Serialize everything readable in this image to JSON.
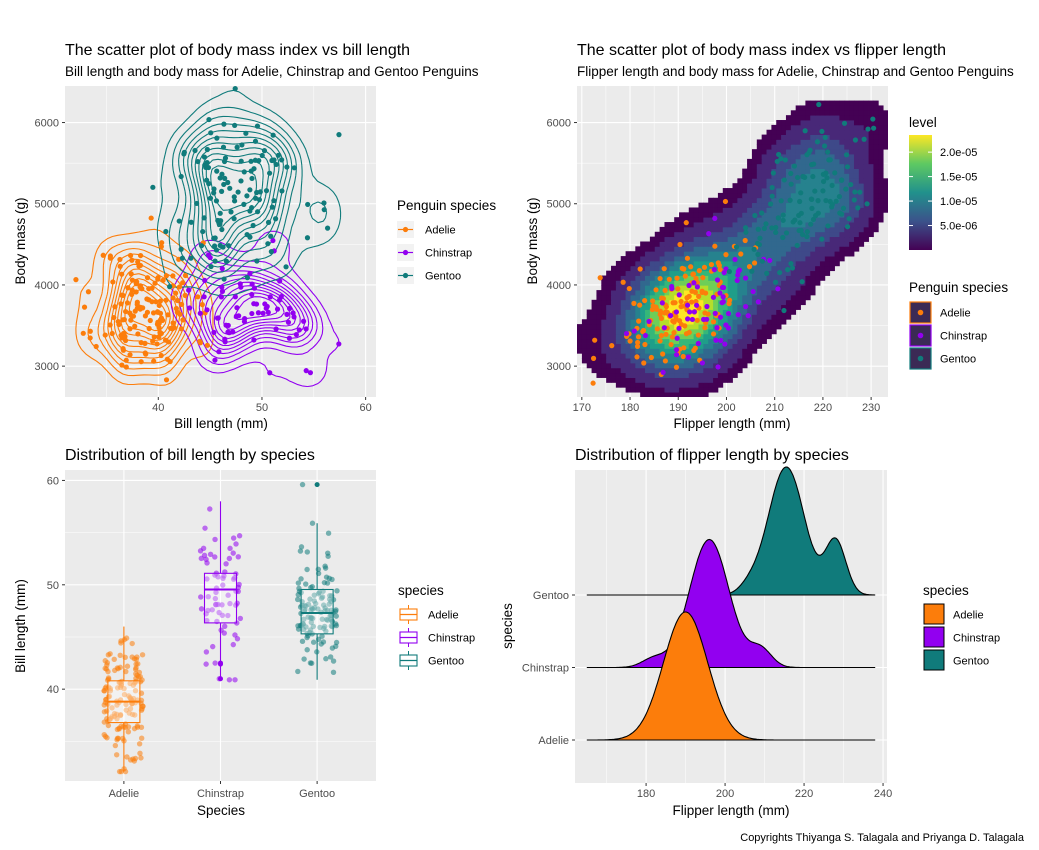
{
  "colors": {
    "adelie": "#fc7d0b",
    "chinstrap": "#9200f0",
    "gentoo": "#107b7b",
    "panel_bg": "#ebebeb",
    "grid": "#ffffff",
    "ridge_line": "#000000"
  },
  "copyright": "Copyrights Thiyanga S. Talagala and Priyanga D. Talagala",
  "chart_data": [
    {
      "id": "p1",
      "type": "scatter",
      "overlay": "2d-density-contours",
      "title": "The scatter plot of body mass index vs bill length",
      "subtitle": "Bill length and body mass for Adelie, Chinstrap and Gentoo Penguins",
      "xlabel": "Bill length (mm)",
      "ylabel": "Body mass (g)",
      "xlim": [
        31,
        61
      ],
      "ylim": [
        2620,
        6450
      ],
      "xticks": [
        40,
        50,
        60
      ],
      "yticks": [
        3000,
        4000,
        5000,
        6000
      ],
      "grid": true,
      "legend_placement": "right",
      "legend": {
        "title": "Penguin species",
        "entries": [
          "Adelie",
          "Chinstrap",
          "Gentoo"
        ]
      },
      "series": [
        {
          "name": "Adelie",
          "color": "#fc7d0b",
          "center": [
            38.8,
            3700
          ],
          "spread": [
            2.66,
            458
          ]
        },
        {
          "name": "Chinstrap",
          "color": "#9200f0",
          "center": [
            48.8,
            3733
          ],
          "spread": [
            3.34,
            384
          ]
        },
        {
          "name": "Gentoo",
          "color": "#107b7b",
          "center": [
            47.5,
            5076
          ],
          "spread": [
            3.08,
            504
          ]
        }
      ]
    },
    {
      "id": "p2",
      "type": "scatter",
      "overlay": "filled-2d-density",
      "title": "The scatter plot of body mass index vs flipper length",
      "subtitle": "Flipper length and body mass for Adelie, Chinstrap and Gentoo Penguins",
      "xlabel": "Flipper length (mm)",
      "ylabel": "Body mass (g)",
      "xlim": [
        169,
        233.5
      ],
      "ylim": [
        2620,
        6450
      ],
      "xticks": [
        170,
        180,
        190,
        200,
        210,
        220,
        230
      ],
      "yticks": [
        3000,
        4000,
        5000,
        6000
      ],
      "grid": true,
      "legend_placement": "right",
      "colorbar": {
        "title": "level",
        "ticks": [
          "2.0e-05",
          "1.5e-05",
          "1.0e-05",
          "5.0e-06"
        ],
        "tick_values": [
          2e-05,
          1.5e-05,
          1e-05,
          5e-06
        ],
        "range": [
          0,
          2.35e-05
        ]
      },
      "legend": {
        "title": "Penguin species",
        "entries": [
          "Adelie",
          "Chinstrap",
          "Gentoo"
        ]
      },
      "series": [
        {
          "name": "Adelie",
          "color": "#fc7d0b",
          "center": [
            190,
            3700
          ],
          "spread": [
            6.5,
            458
          ]
        },
        {
          "name": "Chinstrap",
          "color": "#9200f0",
          "center": [
            196,
            3733
          ],
          "spread": [
            7.1,
            384
          ]
        },
        {
          "name": "Gentoo",
          "color": "#107b7b",
          "center": [
            217,
            5076
          ],
          "spread": [
            6.5,
            504
          ]
        }
      ]
    },
    {
      "id": "p3",
      "type": "box",
      "overlay": "jittered-points",
      "title": "Distribution of bill length by species",
      "xlabel": "Species",
      "ylabel": "Bill length (mm)",
      "categories": [
        "Adelie",
        "Chinstrap",
        "Gentoo"
      ],
      "ylim": [
        31.2,
        61
      ],
      "yticks": [
        40,
        50,
        60
      ],
      "grid": true,
      "legend_placement": "right",
      "legend": {
        "title": "species",
        "entries": [
          "Adelie",
          "Chinstrap",
          "Gentoo"
        ]
      },
      "series": [
        {
          "name": "Adelie",
          "color": "#fc7d0b",
          "min": 32.1,
          "q1": 36.8,
          "median": 38.8,
          "q3": 40.8,
          "max": 46.0,
          "n": 150
        },
        {
          "name": "Chinstrap",
          "color": "#9200f0",
          "min": 40.9,
          "q1": 46.35,
          "median": 49.55,
          "q3": 51.1,
          "max": 58.0,
          "n": 68,
          "outliers": [
            42.4,
            42.5,
            41.0
          ]
        },
        {
          "name": "Gentoo",
          "color": "#107b7b",
          "min": 40.9,
          "q1": 45.3,
          "median": 47.3,
          "q3": 49.55,
          "max": 55.9,
          "n": 123,
          "outliers": [
            59.6
          ]
        }
      ]
    },
    {
      "id": "p4",
      "type": "area",
      "variant": "ridgeline",
      "title": "Distribution of flipper length by species",
      "xlabel": "Flipper length (mm)",
      "ylabel": "species",
      "xlim": [
        162,
        241
      ],
      "xticks": [
        180,
        200,
        220,
        240
      ],
      "categories": [
        "Adelie",
        "Chinstrap",
        "Gentoo"
      ],
      "grid": true,
      "legend_placement": "right",
      "legend": {
        "title": "species",
        "entries": [
          "Adelie",
          "Chinstrap",
          "Gentoo"
        ]
      },
      "series": [
        {
          "name": "Adelie",
          "color": "#fc7d0b",
          "range": [
            165,
            238
          ],
          "components": [
            [
              190,
              5.6,
              1
            ]
          ]
        },
        {
          "name": "Chinstrap",
          "color": "#9200f0",
          "range": [
            165,
            238
          ],
          "components": [
            [
              196,
              5.0,
              1
            ],
            [
              182,
              3.0,
              0.07
            ],
            [
              209,
              2.8,
              0.14
            ]
          ]
        },
        {
          "name": "Gentoo",
          "color": "#107b7b",
          "range": [
            165,
            238
          ],
          "components": [
            [
              215.5,
              4.6,
              1
            ],
            [
              228,
              2.6,
              0.42
            ],
            [
              206,
              2.4,
              0.05
            ]
          ]
        }
      ]
    }
  ]
}
